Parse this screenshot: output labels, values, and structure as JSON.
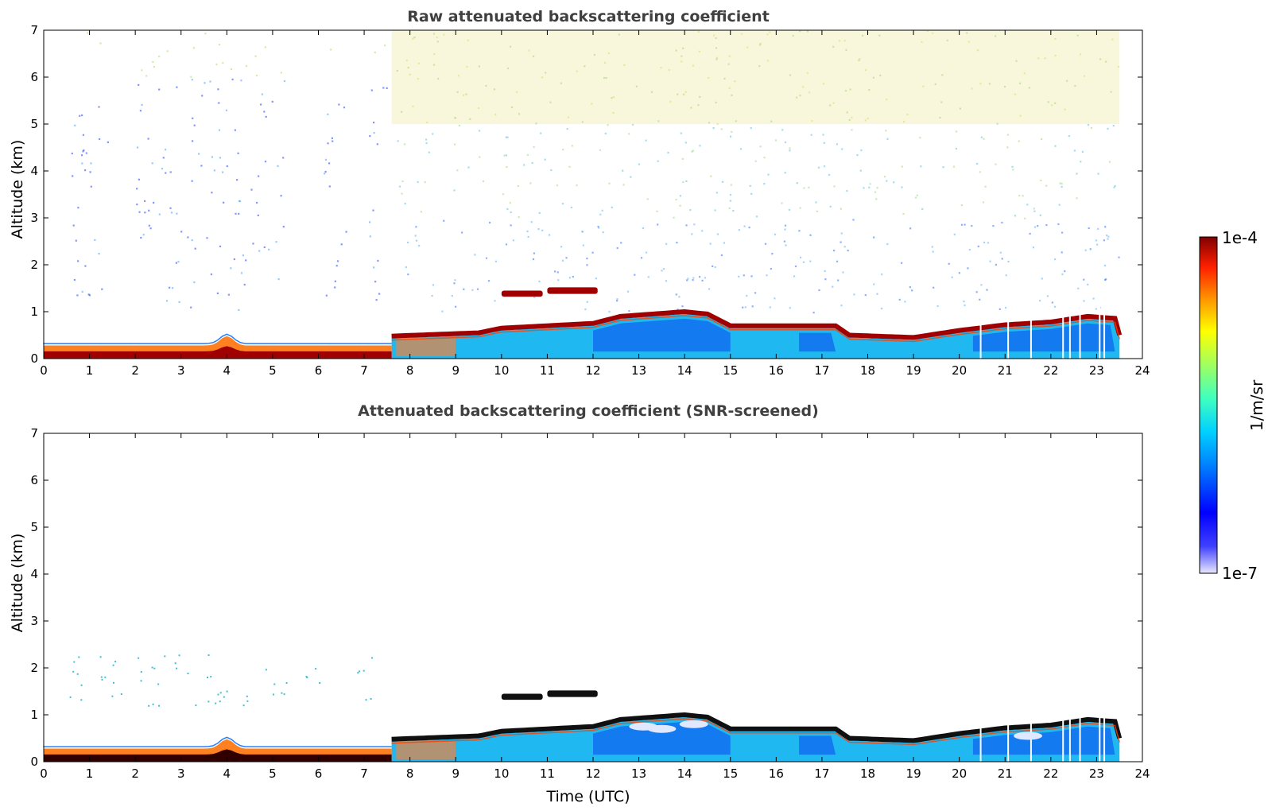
{
  "chart_data": [
    {
      "type": "heatmap",
      "title": "Raw attenuated backscattering coefficient",
      "xlabel": "",
      "ylabel": "Altitude (km)",
      "xlim": [
        0,
        24
      ],
      "ylim": [
        0,
        7
      ],
      "x_ticks": [
        "0",
        "1",
        "2",
        "3",
        "4",
        "5",
        "6",
        "7",
        "8",
        "9",
        "10",
        "11",
        "12",
        "13",
        "14",
        "15",
        "16",
        "17",
        "18",
        "19",
        "20",
        "21",
        "22",
        "23",
        "24"
      ],
      "y_ticks": [
        "0",
        "1",
        "2",
        "3",
        "4",
        "5",
        "6",
        "7"
      ],
      "layers": [
        {
          "name": "surface aerosol layer",
          "start": 0,
          "end": 7.6,
          "top_km": 0.3,
          "level": "high"
        },
        {
          "name": "boundary layer top",
          "start": 7.6,
          "end": 23.5,
          "top_km": [
            0.5,
            0.7,
            0.9,
            1.0,
            0.7,
            0.7,
            0.45,
            0.55,
            0.75,
            0.9
          ],
          "level": "high"
        },
        {
          "name": "elevated layer",
          "start": 10.0,
          "end": 12.1,
          "top_km": 1.4,
          "level": "high"
        },
        {
          "name": "upper noise",
          "start": 7.6,
          "end": 23.5,
          "bottom_km": 1.0,
          "top_km": 7,
          "level": "medium"
        }
      ]
    },
    {
      "type": "heatmap",
      "title": "Attenuated backscattering coefficient (SNR-screened)",
      "xlabel": "Time (UTC)",
      "ylabel": "Altitude (km)",
      "xlim": [
        0,
        24
      ],
      "ylim": [
        0,
        7
      ],
      "x_ticks": [
        "0",
        "1",
        "2",
        "3",
        "4",
        "5",
        "6",
        "7",
        "8",
        "9",
        "10",
        "11",
        "12",
        "13",
        "14",
        "15",
        "16",
        "17",
        "18",
        "19",
        "20",
        "21",
        "22",
        "23",
        "24"
      ],
      "y_ticks": [
        "0",
        "1",
        "2",
        "3",
        "4",
        "5",
        "6",
        "7"
      ],
      "layers": [
        {
          "name": "surface aerosol layer",
          "start": 0,
          "end": 7.6,
          "top_km": 0.3,
          "level": "high"
        },
        {
          "name": "boundary layer top",
          "start": 7.6,
          "end": 23.5,
          "top_km": [
            0.5,
            0.7,
            0.9,
            1.0,
            0.7,
            0.7,
            0.45,
            0.55,
            0.75,
            0.9
          ],
          "level": "high"
        },
        {
          "name": "elevated layer",
          "start": 10.0,
          "end": 12.1,
          "top_km": 1.4,
          "level": "high"
        }
      ]
    }
  ],
  "colorbar": {
    "label": "1/m/sr",
    "max_label": "1e-4",
    "min_label": "1e-7",
    "colormap": "jet"
  }
}
